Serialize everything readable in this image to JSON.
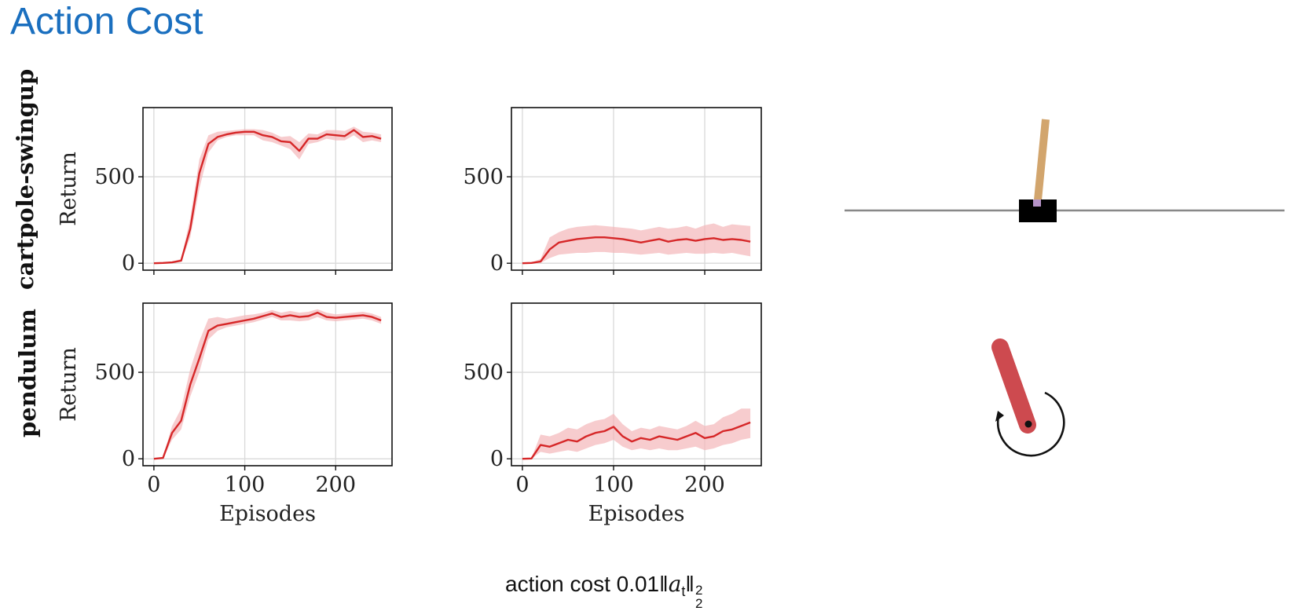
{
  "slide": {
    "title": "Action Cost",
    "caption": {
      "prefix": "action cost 0.01",
      "var": "a",
      "sub": "t",
      "sup": "2",
      "norm_sub": "2"
    }
  },
  "rows": [
    "cartpole-swingup",
    "pendulum"
  ],
  "colors": {
    "line": "#d62728",
    "band": "#f4b6b9",
    "grid": "#d9d9d9",
    "title": "#1a6fbf"
  },
  "illustrations": {
    "cartpole": {
      "icon": "cartpole-icon",
      "pole_color": "#d2a56d",
      "cart_color": "#000000",
      "track_color": "#888888"
    },
    "pendulum": {
      "icon": "pendulum-icon",
      "rod_color": "#cd4a4f"
    }
  },
  "chart_data": [
    {
      "type": "line",
      "row": "cartpole-swingup",
      "xlabel": "",
      "ylabel": "Return",
      "xlim": [
        -12,
        262
      ],
      "ylim": [
        -40,
        900
      ],
      "xticks": [
        0,
        100,
        200
      ],
      "yticks": [
        0,
        500
      ],
      "show_xtick_labels": false,
      "grid": true,
      "series": [
        {
          "x": [
            0,
            10,
            20,
            30,
            40,
            50,
            60,
            70,
            80,
            90,
            100,
            110,
            120,
            130,
            140,
            150,
            160,
            170,
            180,
            190,
            200,
            210,
            220,
            230,
            240,
            250
          ],
          "mean": [
            0,
            2,
            5,
            15,
            200,
            520,
            690,
            730,
            745,
            755,
            760,
            760,
            740,
            730,
            705,
            700,
            650,
            720,
            720,
            745,
            740,
            735,
            770,
            730,
            735,
            720
          ],
          "lower": [
            0,
            0,
            2,
            10,
            150,
            430,
            640,
            710,
            730,
            740,
            740,
            740,
            710,
            700,
            680,
            660,
            600,
            690,
            700,
            720,
            710,
            710,
            740,
            700,
            710,
            700
          ],
          "upper": [
            0,
            5,
            10,
            25,
            260,
            600,
            740,
            760,
            765,
            770,
            775,
            775,
            770,
            755,
            730,
            735,
            700,
            750,
            745,
            770,
            770,
            765,
            790,
            760,
            755,
            745
          ]
        }
      ]
    },
    {
      "type": "line",
      "row": "cartpole-swingup",
      "xlabel": "",
      "ylabel": "",
      "xlim": [
        -12,
        262
      ],
      "ylim": [
        -40,
        900
      ],
      "xticks": [
        0,
        100,
        200
      ],
      "yticks": [
        0,
        500
      ],
      "show_xtick_labels": false,
      "grid": true,
      "series": [
        {
          "x": [
            0,
            10,
            20,
            30,
            40,
            50,
            60,
            70,
            80,
            90,
            100,
            110,
            120,
            130,
            140,
            150,
            160,
            170,
            180,
            190,
            200,
            210,
            220,
            230,
            240,
            250
          ],
          "mean": [
            0,
            2,
            10,
            80,
            120,
            130,
            140,
            145,
            150,
            150,
            145,
            140,
            130,
            120,
            130,
            140,
            125,
            135,
            140,
            130,
            140,
            145,
            135,
            140,
            135,
            125
          ],
          "lower": [
            0,
            0,
            2,
            30,
            50,
            55,
            60,
            60,
            65,
            65,
            60,
            60,
            55,
            50,
            55,
            60,
            50,
            55,
            60,
            55,
            55,
            60,
            55,
            60,
            50,
            40
          ],
          "upper": [
            0,
            5,
            25,
            150,
            180,
            200,
            210,
            215,
            220,
            215,
            210,
            205,
            200,
            190,
            200,
            210,
            200,
            205,
            215,
            200,
            220,
            230,
            210,
            225,
            220,
            215
          ]
        }
      ]
    },
    {
      "type": "line",
      "row": "pendulum",
      "xlabel": "Episodes",
      "ylabel": "Return",
      "xlim": [
        -12,
        262
      ],
      "ylim": [
        -40,
        900
      ],
      "xticks": [
        0,
        100,
        200
      ],
      "yticks": [
        0,
        500
      ],
      "show_xtick_labels": true,
      "grid": true,
      "series": [
        {
          "x": [
            0,
            10,
            20,
            30,
            40,
            50,
            60,
            70,
            80,
            90,
            100,
            110,
            120,
            130,
            140,
            150,
            160,
            170,
            180,
            190,
            200,
            210,
            220,
            230,
            240,
            250
          ],
          "mean": [
            0,
            5,
            150,
            220,
            430,
            580,
            740,
            770,
            780,
            790,
            800,
            810,
            825,
            840,
            820,
            830,
            820,
            825,
            845,
            820,
            815,
            820,
            825,
            830,
            820,
            800
          ],
          "lower": [
            0,
            0,
            110,
            170,
            360,
            500,
            690,
            740,
            760,
            770,
            780,
            790,
            805,
            820,
            800,
            800,
            795,
            800,
            820,
            800,
            795,
            800,
            805,
            810,
            800,
            780
          ],
          "upper": [
            0,
            10,
            190,
            290,
            520,
            680,
            810,
            820,
            810,
            820,
            830,
            835,
            845,
            860,
            845,
            855,
            845,
            850,
            865,
            845,
            835,
            840,
            845,
            850,
            840,
            820
          ]
        }
      ]
    },
    {
      "type": "line",
      "row": "pendulum",
      "xlabel": "Episodes",
      "ylabel": "",
      "xlim": [
        -12,
        262
      ],
      "ylim": [
        -40,
        900
      ],
      "xticks": [
        0,
        100,
        200
      ],
      "yticks": [
        0,
        500
      ],
      "show_xtick_labels": true,
      "grid": true,
      "series": [
        {
          "x": [
            0,
            10,
            20,
            30,
            40,
            50,
            60,
            70,
            80,
            90,
            100,
            110,
            120,
            130,
            140,
            150,
            160,
            170,
            180,
            190,
            200,
            210,
            220,
            230,
            240,
            250
          ],
          "mean": [
            0,
            2,
            80,
            70,
            90,
            110,
            100,
            130,
            150,
            160,
            185,
            130,
            100,
            120,
            110,
            130,
            120,
            110,
            130,
            150,
            120,
            130,
            160,
            170,
            190,
            210
          ],
          "lower": [
            0,
            0,
            40,
            30,
            40,
            50,
            40,
            60,
            80,
            90,
            110,
            70,
            50,
            60,
            50,
            60,
            50,
            50,
            60,
            70,
            50,
            60,
            80,
            90,
            110,
            120
          ],
          "upper": [
            0,
            5,
            140,
            130,
            150,
            180,
            170,
            200,
            220,
            230,
            260,
            200,
            160,
            180,
            170,
            190,
            180,
            170,
            190,
            220,
            190,
            200,
            240,
            260,
            290,
            290
          ]
        }
      ]
    }
  ]
}
